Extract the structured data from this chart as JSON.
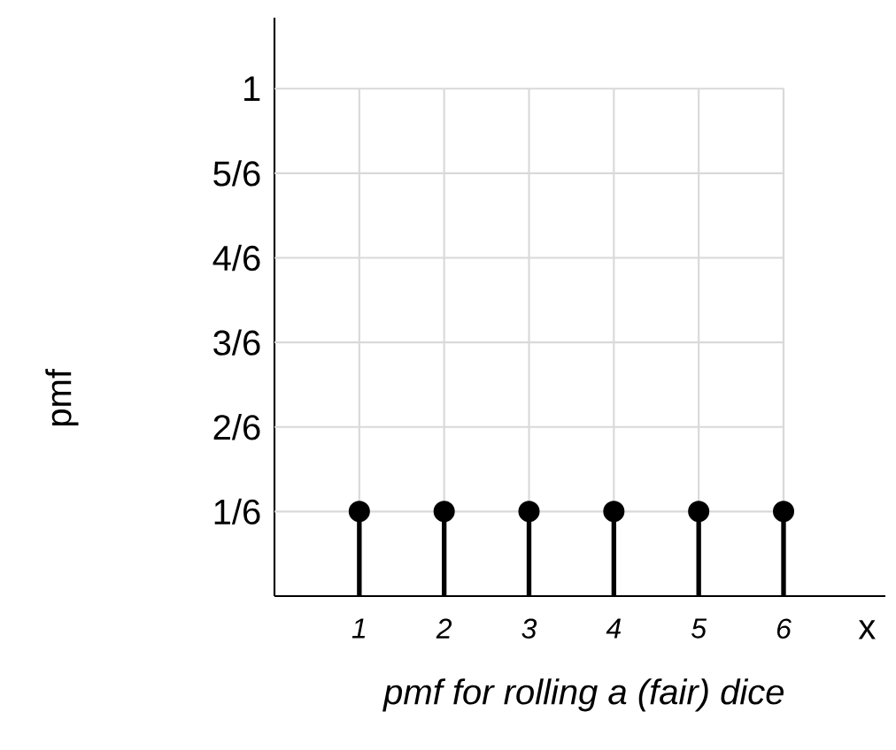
{
  "chart_data": {
    "type": "lollipop",
    "title": "pmf for rolling a (fair) dice",
    "xlabel": "x",
    "ylabel": "pmf",
    "x": [
      1,
      2,
      3,
      4,
      5,
      6
    ],
    "values": [
      0.1667,
      0.1667,
      0.1667,
      0.1667,
      0.1667,
      0.1667
    ],
    "color": "#000000",
    "marker": "circle",
    "grid": true,
    "xlim": [
      0,
      7.2
    ],
    "ylim": [
      0,
      1.14
    ],
    "xticks": [
      1,
      2,
      3,
      4,
      5,
      6
    ],
    "yticks": [
      {
        "value": 0.1667,
        "label": "1/6"
      },
      {
        "value": 0.3333,
        "label": "2/6"
      },
      {
        "value": 0.5,
        "label": "3/6"
      },
      {
        "value": 0.6667,
        "label": "4/6"
      },
      {
        "value": 0.8333,
        "label": "5/6"
      },
      1
    ]
  }
}
